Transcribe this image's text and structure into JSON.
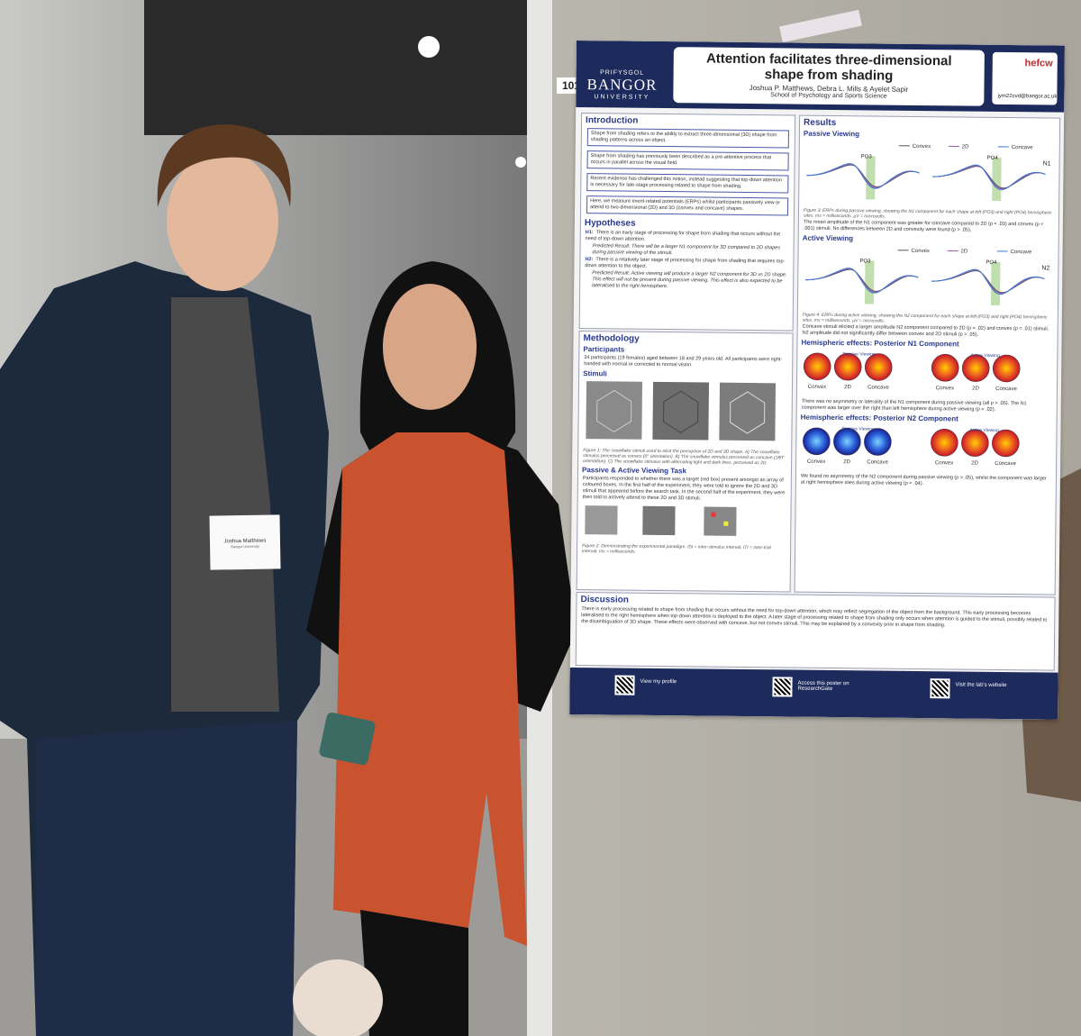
{
  "board_number": "101",
  "badge": {
    "name": "Joshua Matthews",
    "affiliation": "Bangor University"
  },
  "poster": {
    "university_welsh": "PRIFYSGOL",
    "university": "BANGOR",
    "university_sub": "UNIVERSITY",
    "title": "Attention facilitates three-dimensional shape from shading",
    "authors": "Joshua P. Matthews, Debra L. Mills & Ayelet Sapir",
    "affiliation": "School of Psychology and Sports Science",
    "email": "jym22cvd@bangor.ac.uk",
    "funder": "hefcw",
    "introduction": {
      "heading": "Introduction",
      "boxes": [
        "Shape from shading refers to the ability to extract three-dimensional (3D) shape from shading patterns across an object.",
        "Shape from shading has previously been described as a pre-attentive process that occurs in parallel across the visual field.",
        "Recent evidence has challenged this notion, instead suggesting that top-down attention is necessary for late-stage processing related to shape from shading.",
        "Here, we measure event-related potentials (ERPs) whilst participants passively view or attend to two-dimensional (2D) and 3D (convex and concave) shapes."
      ]
    },
    "hypotheses": {
      "heading": "Hypotheses",
      "items": [
        {
          "label": "H1:",
          "text": "There is an early stage of processing for shape from shading that occurs without the need of top-down attention.",
          "prediction": "Predicted Result: There will be a larger N1 component for 3D compared to 2D shapes during passive viewing of the stimuli."
        },
        {
          "label": "H2:",
          "text": "There is a relatively later stage of processing for shape from shading that requires top-down attention to the object.",
          "prediction": "Predicted Result: Active viewing will produce a larger N2 component for 3D vs 2D shape. This effect will not be present during passive viewing. This effect is also expected to be lateralised to the right hemisphere."
        }
      ]
    },
    "methodology": {
      "heading": "Methodology",
      "participants_heading": "Participants",
      "participants": "34 participants (19 females) aged between 18 and 29 years old. All participants were right-handed with normal or corrected to normal vision.",
      "stimuli_heading": "Stimuli",
      "stimuli_caption": "Figure 1: The snowflake stimuli used to elicit the perception of 2D and 3D shape. A) The snowflake stimulus perceived as convex (0° orientation). B) The snowflake stimulus perceived as concave (180° orientation). C) The snowflake stimulus with alternating light and dark lines, perceived as 2D.",
      "task_heading": "Passive & Active Viewing Task",
      "task": "Participants responded to whether there was a target (red box) present amongst an array of coloured boxes. In the first half of the experiment, they were told to ignore the 2D and 3D stimuli that appeared before the search task. In the second half of the experiment, they were then told to actively attend to these 2D and 3D stimuli.",
      "task_caption": "Figure 2: Demonstrating the experimental paradigm. ISI = inter-stimulus interval, ITI = inter-trial interval, ms = milliseconds."
    },
    "results": {
      "heading": "Results",
      "passive_heading": "Passive Viewing",
      "active_heading": "Active Viewing",
      "legend": [
        "Convex",
        "2D",
        "Concave"
      ],
      "channels": [
        "PO3",
        "PO4"
      ],
      "components": [
        "N1",
        "N2"
      ],
      "passive_caption": "Figure 3: ERPs during passive viewing, showing the N1 component for each shape at left (PO3) and right (PO4) hemispheric sites. ms = milliseconds, µV = microvolts.",
      "passive_text": "The mean amplitude of the N1 component was greater for concave compared to 2D (p = .03) and convex (p < .001) stimuli. No differences between 2D and convexity were found (p > .05).",
      "active_caption": "Figure 4: ERPs during active viewing, showing the N2 component for each shape at left (PO3) and right (PO4) hemispheric sites. ms = milliseconds, µV = microvolts.",
      "active_text": "Concave stimuli elicited a larger amplitude N2 component compared to 2D (p = .02) and convex (p = .01) stimuli. N2 amplitude did not significantly differ between convex and 2D stimuli (p > .05).",
      "n1_heading": "Hemispheric effects: Posterior N1 Component",
      "n1_text": "There was no asymmetry or laterality of the N1 component during passive viewing (all p > .05). The N1 component was larger over the right than left hemisphere during active viewing (p = .02).",
      "n2_heading": "Hemispheric effects: Posterior N2 Component",
      "n2_text": "We found no asymmetry of the N2 component during passive viewing (p > .05), whilst the component was larger at right hemisphere sites during active viewing (p = .04)."
    },
    "discussion": {
      "heading": "Discussion",
      "text": "There is early processing related to shape from shading that occurs without the need for top-down attention, which may reflect segregation of the object from the background. This early processing becomes lateralised to the right hemisphere when top-down attention is deployed to the object. A later stage of processing related to shape from shading only occurs when attention is guided to the stimuli, possibly related to the disambiguation of 3D shape. These effects were observed with concave, but not convex stimuli. This may be explained by a convexity prior in shape from shading."
    },
    "footer": [
      "View my profile",
      "Access this poster on ResearchGate",
      "Visit the lab's website"
    ]
  }
}
